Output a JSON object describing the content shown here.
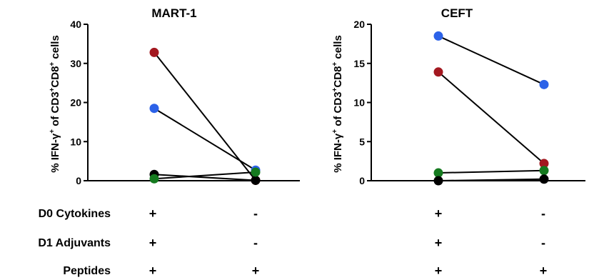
{
  "chart_data": [
    {
      "type": "scatter",
      "title": "MART-1",
      "ylabel": "% IFN-γ+ of CD3+CD8+ cells",
      "ylim": [
        0,
        40
      ],
      "yticks": [
        0,
        10,
        20,
        30,
        40
      ],
      "grid": false,
      "x": [
        "D0 Cytokines + D1 Adjuvants + Peptides",
        "Peptides only"
      ],
      "series": [
        {
          "color": "#a31820",
          "values": [
            32.8,
            0.1
          ]
        },
        {
          "color": "#2c62e8",
          "values": [
            18.5,
            2.7
          ]
        },
        {
          "color": "#000000",
          "values": [
            1.6,
            0.1
          ]
        },
        {
          "color": "#157a1f",
          "values": [
            0.5,
            2.2
          ]
        }
      ]
    },
    {
      "type": "scatter",
      "title": "CEFT",
      "ylabel": "% IFN-γ+ of CD3+CD8+ cells",
      "ylim": [
        0,
        20
      ],
      "yticks": [
        0,
        5,
        10,
        15,
        20
      ],
      "grid": false,
      "x": [
        "D0 Cytokines + D1 Adjuvants + Peptides",
        "Peptides only"
      ],
      "series": [
        {
          "color": "#2c62e8",
          "values": [
            18.5,
            12.3
          ]
        },
        {
          "color": "#a31820",
          "values": [
            13.9,
            2.2
          ]
        },
        {
          "color": "#157a1f",
          "values": [
            1.0,
            1.3
          ]
        },
        {
          "color": "#000000",
          "values": [
            0.0,
            0.2
          ]
        }
      ]
    }
  ],
  "ylabel_parts": {
    "prefix": "% IFN-γ",
    "sup1": "+",
    "mid1": " of CD3",
    "sup2": "+",
    "mid2": "CD8",
    "sup3": "+",
    "suffix": " cells"
  },
  "conditions": [
    {
      "label": "D0 Cytokines",
      "signs": [
        "+",
        "-",
        "+",
        "-"
      ]
    },
    {
      "label": "D1 Adjuvants",
      "signs": [
        "+",
        "-",
        "+",
        "-"
      ]
    },
    {
      "label": "Peptides",
      "signs": [
        "+",
        "+",
        "+",
        "+"
      ]
    }
  ]
}
